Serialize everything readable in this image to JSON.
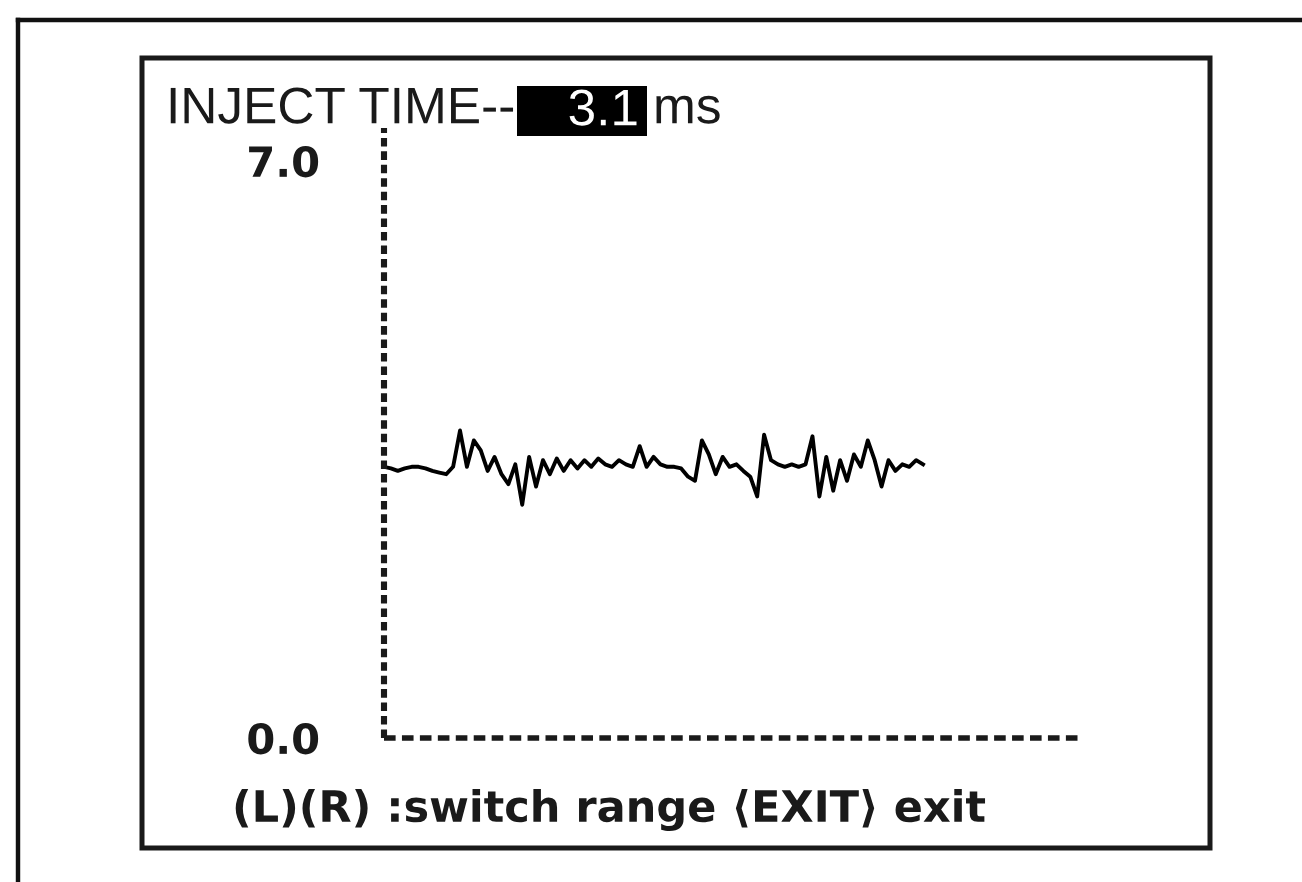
{
  "chart_data": {
    "type": "line",
    "title": "INJECT TIME--",
    "annotations": [
      "3.1",
      "ms",
      "(L)(R) :switch range ⟨EXIT⟩ exit"
    ],
    "categories": [
      null,
      null,
      null,
      null,
      null,
      null,
      null,
      null,
      null,
      null,
      null,
      null,
      null,
      null,
      null,
      null,
      null,
      null,
      null,
      null,
      null,
      null,
      null,
      null,
      null,
      null,
      null,
      null,
      null,
      null,
      null,
      null,
      null,
      null,
      null,
      null,
      null,
      null,
      null,
      null,
      null,
      null,
      null,
      null,
      null,
      null,
      null,
      null,
      null,
      null,
      null,
      null,
      null,
      null,
      null,
      null,
      null,
      null,
      null,
      null,
      null,
      null,
      null,
      null,
      null,
      null,
      null,
      null,
      null,
      null,
      null,
      null,
      null,
      null,
      null,
      null,
      null,
      null,
      null,
      null,
      null,
      null,
      null,
      null,
      null,
      null,
      null,
      null,
      null,
      null,
      null,
      null,
      null,
      null,
      null,
      null,
      null,
      null,
      null,
      null,
      null,
      null
    ],
    "values": [
      3.29,
      3.27,
      3.24,
      3.27,
      3.29,
      3.29,
      3.27,
      3.24,
      3.22,
      3.2,
      3.29,
      3.73,
      3.29,
      3.61,
      3.49,
      3.24,
      3.41,
      3.2,
      3.08,
      3.32,
      2.83,
      3.41,
      3.05,
      3.37,
      3.2,
      3.39,
      3.24,
      3.37,
      3.27,
      3.37,
      3.29,
      3.39,
      3.32,
      3.29,
      3.37,
      3.32,
      3.29,
      3.54,
      3.29,
      3.41,
      3.32,
      3.29,
      3.29,
      3.27,
      3.17,
      3.12,
      3.61,
      3.44,
      3.2,
      3.41,
      3.29,
      3.32,
      3.24,
      3.17,
      2.93,
      3.68,
      3.37,
      3.32,
      3.29,
      3.32,
      3.29,
      3.32,
      3.66,
      2.93,
      3.41,
      3.0,
      3.37,
      3.12,
      3.44,
      3.29,
      3.61,
      3.37,
      3.05,
      3.37,
      3.24,
      3.32,
      3.29,
      3.37,
      3.32,
      null,
      null,
      null,
      null,
      null,
      null,
      null,
      null,
      null,
      null,
      null,
      null,
      null,
      null,
      null,
      null,
      null,
      null,
      null,
      null,
      null,
      null,
      null
    ],
    "color": "#000000",
    "line_style": "solid",
    "ylim": [
      0,
      7.4
    ],
    "yticks": [
      {
        "value": 0,
        "label": "0.0"
      },
      {
        "value": 7,
        "label": "7.0"
      }
    ],
    "tick_labels": "y"
  }
}
